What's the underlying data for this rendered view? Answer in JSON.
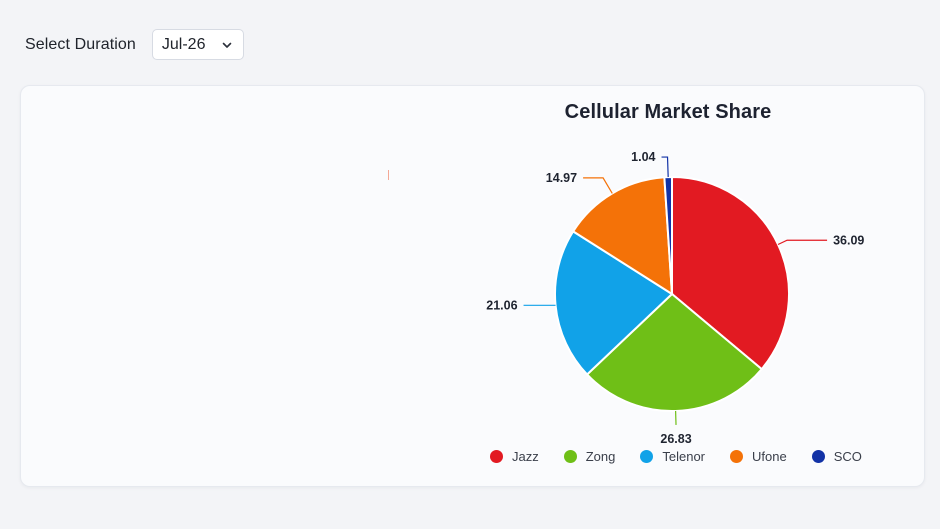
{
  "filter": {
    "label": "Select Duration",
    "selected": "Jul-26"
  },
  "chart_data": {
    "type": "pie",
    "title": "Cellular Market Share",
    "categories": [
      "Jazz",
      "Zong",
      "Telenor",
      "Ufone",
      "SCO"
    ],
    "values": [
      36.09,
      26.83,
      21.06,
      14.97,
      1.04
    ],
    "colors": [
      "#e21a22",
      "#6fbf17",
      "#11a2e8",
      "#f47208",
      "#1232a6"
    ],
    "legend_position": "bottom"
  }
}
